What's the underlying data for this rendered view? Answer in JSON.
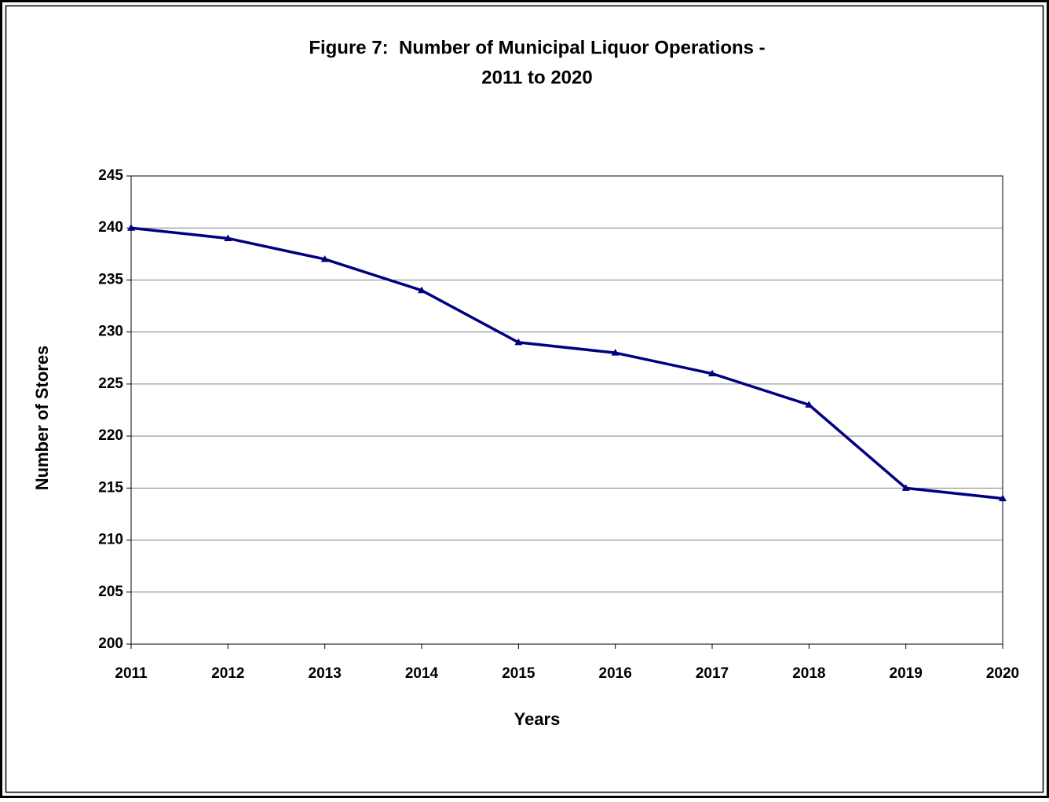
{
  "chart_data": {
    "type": "line",
    "title": [
      "Figure 7:  Number of Municipal Liquor Operations -",
      "2011 to 2020"
    ],
    "x_label": "Years",
    "y_label": "Number of Stores",
    "categories": [
      "2011",
      "2012",
      "2013",
      "2014",
      "2015",
      "2016",
      "2017",
      "2018",
      "2019",
      "2020"
    ],
    "values": [
      240,
      239,
      237,
      234,
      229,
      228,
      226,
      223,
      215,
      214
    ],
    "color": "#000080",
    "marker": "triangle",
    "ylim": [
      200,
      245
    ],
    "yticks": [
      200,
      205,
      210,
      215,
      220,
      225,
      230,
      235,
      240,
      245
    ],
    "grid": true
  }
}
